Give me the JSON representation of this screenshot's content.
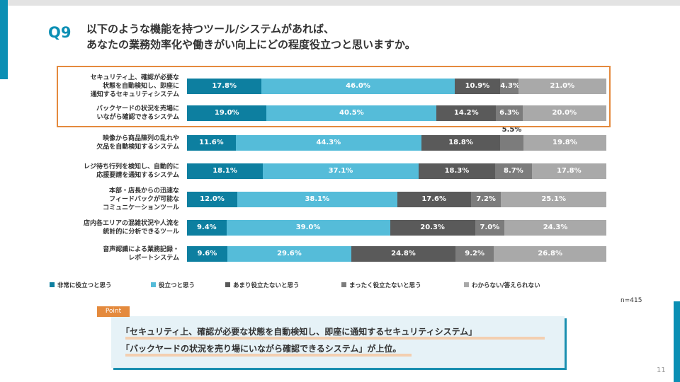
{
  "question": {
    "number": "Q9",
    "title_line1": "以下のような機能を持つツール/システムがあれば、",
    "title_line2": "あなたの業務効率化や働きがい向上にどの程度役立つと思いますか。"
  },
  "chart_data": {
    "type": "bar",
    "orientation": "horizontal",
    "stacked": "percent",
    "categories": [
      [
        "セキュリティ上、確認が必要な",
        "状態を自動検知し、即座に",
        "通知するセキュリティシステム"
      ],
      [
        "バックヤードの状況を売場に",
        "いながら確認できるシステム"
      ],
      [
        "映像から商品陳列の乱れや",
        "欠品を自動検知するシステム"
      ],
      [
        "レジ待ち行列を検知し、自動的に",
        "応援要請を通知するシステム"
      ],
      [
        "本部・店長からの迅速な",
        "フィードバックが可能な",
        "コミュニケーションツール"
      ],
      [
        "店内各エリアの混雑状況や人流を",
        "統計的に分析できるツール"
      ],
      [
        "音声認識による業務記録・",
        "レポートシステム"
      ]
    ],
    "series": [
      {
        "name": "非常に役立つと思う",
        "color": "#0d7fa0",
        "label_color": "#ffffff",
        "values": [
          17.8,
          19.0,
          11.6,
          18.1,
          12.0,
          9.4,
          9.6
        ],
        "labels": [
          "17.8%",
          "19.0%",
          "11.6%",
          "18.1%",
          "12.0%",
          "9.4%",
          "9.6%"
        ]
      },
      {
        "name": "役立つと思う",
        "color": "#55bcd9",
        "label_color": "#ffffff",
        "values": [
          46.0,
          40.5,
          44.3,
          37.1,
          38.1,
          39.0,
          29.6
        ],
        "labels": [
          "46.0%",
          "40.5%",
          "44.3%",
          "37.1%",
          "38.1%",
          "39.0%",
          "29.6%"
        ]
      },
      {
        "name": "あまり役立たないと思う",
        "color": "#5a5a5a",
        "label_color": "#ffffff",
        "values": [
          10.9,
          14.2,
          18.8,
          18.3,
          17.6,
          20.3,
          24.8
        ],
        "labels": [
          "10.9%",
          "14.2%",
          "18.8%",
          "18.3%",
          "17.6%",
          "20.3%",
          "24.8%"
        ]
      },
      {
        "name": "まったく役立たないと思う",
        "color": "#7c7c7c",
        "label_color": "#ffffff",
        "values": [
          4.3,
          6.3,
          5.5,
          8.7,
          7.2,
          7.0,
          9.2
        ],
        "labels": [
          "4.3%",
          "6.3%",
          "5.5%",
          "8.7%",
          "7.2%",
          "7.0%",
          "9.2%"
        ]
      },
      {
        "name": "わからない/答えられない",
        "color": "#a9a9a9",
        "label_color": "#ffffff",
        "values": [
          21.0,
          20.0,
          19.8,
          17.8,
          25.1,
          24.3,
          26.8
        ],
        "labels": [
          "21.0%",
          "20.0%",
          "19.8%",
          "17.8%",
          "25.1%",
          "24.3%",
          "26.8%"
        ]
      }
    ],
    "xlim": [
      0,
      100
    ],
    "legend_position": "bottom",
    "highlighted_rows": [
      0,
      1
    ],
    "outside_labels": [
      {
        "row": 2,
        "series": 3,
        "label": "5.5%"
      }
    ]
  },
  "sample_size": "n=415",
  "point": {
    "tag": "Point",
    "line1": "「セキュリティ上、確認が必要な状態を自動検知し、即座に通知するセキュリティシステム」",
    "line2": "「バックヤードの状況を売り場にいながら確認できるシステム」が上位。"
  },
  "page_number": "11"
}
